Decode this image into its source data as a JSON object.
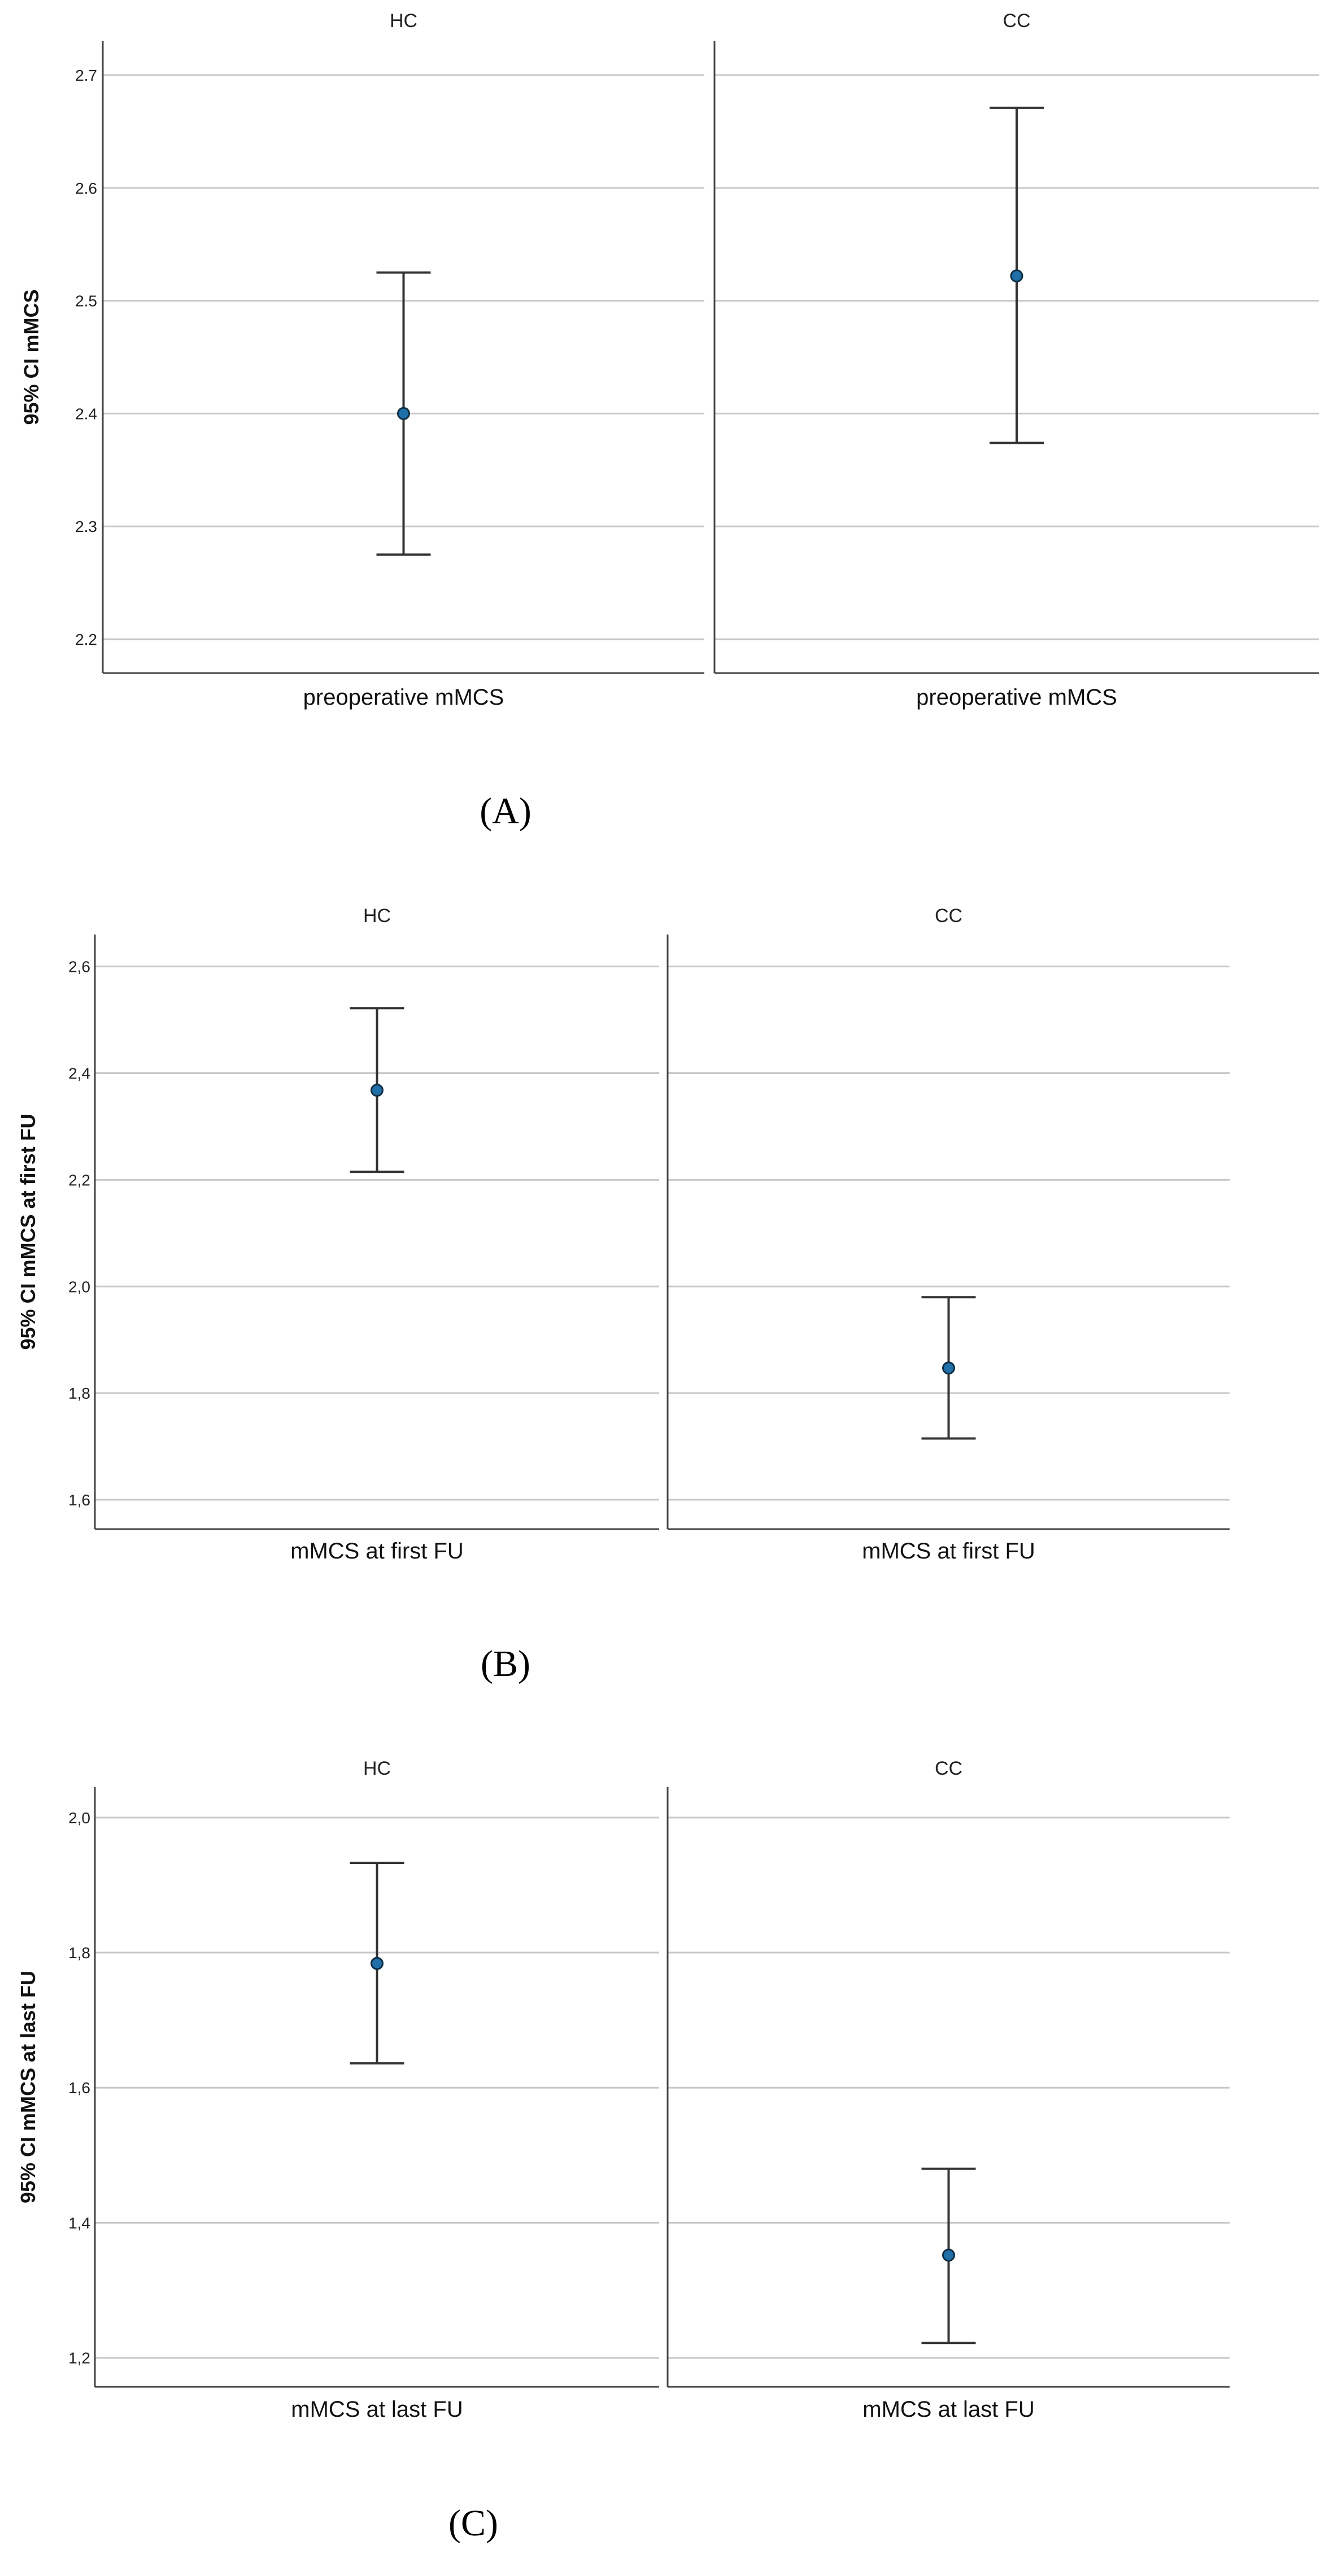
{
  "chart_data": [
    {
      "type": "errorbar",
      "caption": "(A)",
      "ylabel": "95% CI mMCS",
      "ylim": [
        2.17,
        2.73
      ],
      "yticks": [
        "2.2",
        "2.3",
        "2.4",
        "2.5",
        "2.6",
        "2.7"
      ],
      "ytick_values": [
        2.2,
        2.3,
        2.4,
        2.5,
        2.6,
        2.7
      ],
      "grid": true,
      "panels": [
        {
          "title": "HC",
          "xlabel": "preoperative mMCS",
          "mean": 2.4,
          "lower": 2.275,
          "upper": 2.525
        },
        {
          "title": "CC",
          "xlabel": "preoperative mMCS",
          "mean": 2.522,
          "lower": 2.374,
          "upper": 2.671
        }
      ]
    },
    {
      "type": "errorbar",
      "caption": "(B)",
      "ylabel": "95% CI mMCS at first FU",
      "ylim": [
        1.545,
        2.66
      ],
      "yticks": [
        "1,6",
        "1,8",
        "2,0",
        "2,2",
        "2,4",
        "2,6"
      ],
      "ytick_values": [
        1.6,
        1.8,
        2.0,
        2.2,
        2.4,
        2.6
      ],
      "grid": true,
      "panels": [
        {
          "title": "HC",
          "xlabel": "mMCS at first FU",
          "mean": 2.368,
          "lower": 2.215,
          "upper": 2.522
        },
        {
          "title": "CC",
          "xlabel": "mMCS at first FU",
          "mean": 1.847,
          "lower": 1.715,
          "upper": 1.98
        }
      ]
    },
    {
      "type": "errorbar",
      "caption": "(C)",
      "ylabel": "95% CI mMCS at last FU",
      "ylim": [
        1.157,
        2.045
      ],
      "yticks": [
        "1,2",
        "1,4",
        "1,6",
        "1,8",
        "2,0"
      ],
      "ytick_values": [
        1.2,
        1.4,
        1.6,
        1.8,
        2.0
      ],
      "grid": true,
      "panels": [
        {
          "title": "HC",
          "xlabel": "mMCS at last FU",
          "mean": 1.784,
          "lower": 1.636,
          "upper": 1.933
        },
        {
          "title": "CC",
          "xlabel": "mMCS at last FU",
          "mean": 1.352,
          "lower": 1.222,
          "upper": 1.48
        }
      ]
    }
  ]
}
